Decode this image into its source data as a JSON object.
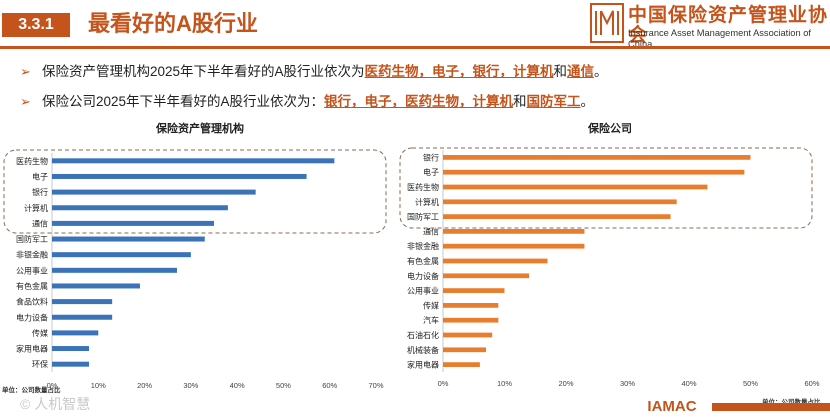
{
  "header": {
    "section_number": "3.3.1",
    "section_title": "最看好的A股行业",
    "org_name_cn": "中国保险资产管理业协会",
    "org_name_en": "Insurance Asset Management Association of China",
    "logo_mark_text": "IAMAC"
  },
  "bullets": [
    {
      "prefix": "保险资产管理机构2025年下半年看好的A股行业依次为",
      "hl1": "医药生物，电子，银行，计算机",
      "mid": "和",
      "hl2": "通信",
      "suffix": "。"
    },
    {
      "prefix": "保险公司2025年下半年看好的A股行业依次为：",
      "hl1": "银行，电子，医药生物，计算机",
      "mid": "和",
      "hl2": "国防军工",
      "suffix": "。"
    }
  ],
  "footer": {
    "watermark": "人机智慧",
    "logo_text": "IAMAC"
  },
  "colors": {
    "accent": "#c4541c",
    "series_left": "#3b73b9",
    "series_right": "#e87d2e",
    "highlight_border": "#8a6a55"
  },
  "chart_data": [
    {
      "type": "bar",
      "orientation": "horizontal",
      "title": "保险资产管理机构",
      "unit_label": "单位：公司数量占比",
      "categories": [
        "医药生物",
        "电子",
        "银行",
        "计算机",
        "通信",
        "国防军工",
        "非银金融",
        "公用事业",
        "有色金属",
        "食品饮料",
        "电力设备",
        "传媒",
        "家用电器",
        "环保"
      ],
      "values": [
        61,
        55,
        44,
        38,
        35,
        33,
        30,
        27,
        19,
        13,
        13,
        10,
        8,
        8
      ],
      "xlim": [
        0,
        70
      ],
      "xticks": [
        "0%",
        "10%",
        "20%",
        "30%",
        "40%",
        "50%",
        "60%",
        "70%"
      ],
      "highlighted_top_n": 5
    },
    {
      "type": "bar",
      "orientation": "horizontal",
      "title": "保险公司",
      "unit_label": "单位：公司数量占比",
      "categories": [
        "银行",
        "电子",
        "医药生物",
        "计算机",
        "国防军工",
        "通信",
        "非银金融",
        "有色金属",
        "电力设备",
        "公用事业",
        "传媒",
        "汽车",
        "石油石化",
        "机械装备",
        "家用电器"
      ],
      "values": [
        50,
        49,
        43,
        38,
        37,
        23,
        23,
        17,
        14,
        10,
        9,
        9,
        8,
        7,
        6
      ],
      "xlim": [
        0,
        60
      ],
      "xticks": [
        "0%",
        "10%",
        "20%",
        "30%",
        "40%",
        "50%",
        "60%"
      ],
      "highlighted_top_n": 5
    }
  ]
}
